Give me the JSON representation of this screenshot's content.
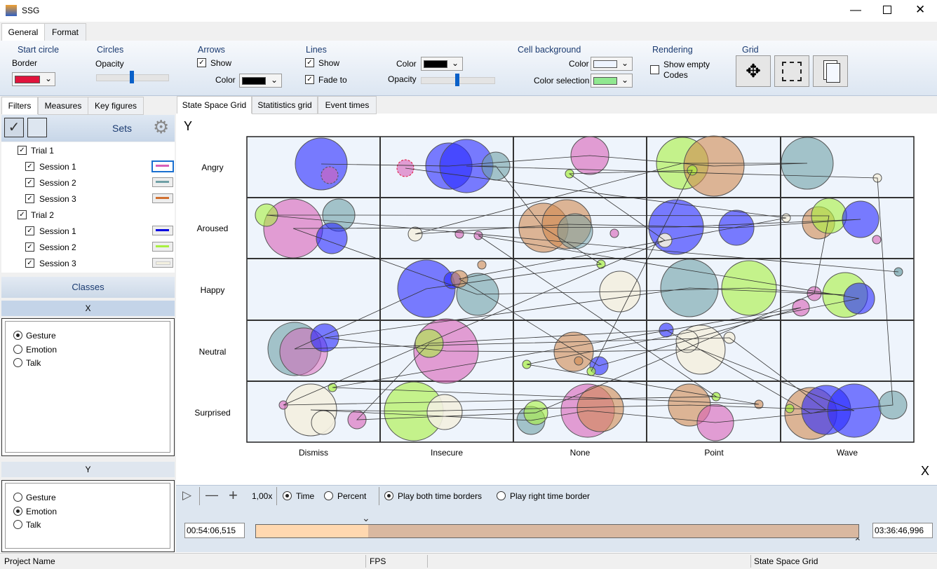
{
  "window": {
    "title": "SSG"
  },
  "ribbon": {
    "tabs": [
      "General",
      "Format"
    ],
    "start_circle": {
      "title": "Start circle",
      "border": "Border"
    },
    "circles": {
      "title": "Circles",
      "opacity": "Opacity"
    },
    "arrows": {
      "title": "Arrows",
      "show": "Show",
      "color": "Color"
    },
    "lines": {
      "title": "Lines",
      "show": "Show",
      "fade_to": "Fade to",
      "color": "Color",
      "opacity": "Opacity"
    },
    "cell_background": {
      "title": "Cell background",
      "color": "Color",
      "color_selection": "Color selection"
    },
    "rendering": {
      "title": "Rendering",
      "show_empty_codes": "Show empty Codes"
    },
    "grid": {
      "title": "Grid"
    }
  },
  "left_panel": {
    "tabs": [
      "Filters",
      "Measures",
      "Key figures"
    ],
    "sets": "Sets",
    "tree": [
      "Trial 1",
      "Session 1",
      "Session 2",
      "Session 3",
      "Trial 2",
      "Session 1",
      "Session 2",
      "Session 3"
    ],
    "classes": "Classes",
    "x_header": "X",
    "x_options": [
      "Gesture",
      "Emotion",
      "Talk"
    ],
    "y_header": "Y",
    "y_options": [
      "Gesture",
      "Emotion",
      "Talk"
    ]
  },
  "main_tabs": [
    "State Space Grid",
    "Statitistics grid",
    "Event times"
  ],
  "grid": {
    "y_axis": "Y",
    "x_axis": "X",
    "rows": [
      "Angry",
      "Aroused",
      "Happy",
      "Neutral",
      "Surprised"
    ],
    "columns": [
      "Dismiss",
      "Insecure",
      "None",
      "Point",
      "Wave"
    ]
  },
  "toolbar": {
    "zoom": "1,00x",
    "time": "Time",
    "percent": "Percent",
    "play_both": "Play both time borders",
    "play_right": "Play right time border"
  },
  "timeline": {
    "start": "00:54:06,515",
    "end": "03:36:46,996"
  },
  "status_bar": [
    "Project Name",
    "FPS",
    "State Space Grid"
  ]
}
